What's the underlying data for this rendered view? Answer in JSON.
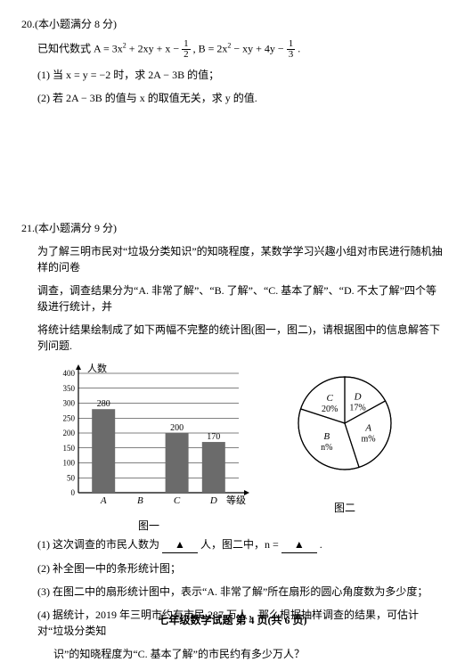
{
  "q20": {
    "header": "20.(本小题满分 8 分)",
    "given_prefix": "已知代数式 ",
    "A_expr_pre": "A = 3x",
    "A_expr_mid": " + 2xy + x − ",
    "A_frac_n": "1",
    "A_frac_d": "2",
    "sep": " , ",
    "B_expr_pre": "B = 2x",
    "B_expr_mid": " − xy + 4y − ",
    "B_frac_n": "1",
    "B_frac_d": "3",
    "period": " .",
    "p1": "(1) 当 x = y = −2 时，求 2A − 3B 的值；",
    "p2": "(2) 若 2A − 3B 的值与 x 的取值无关，求 y 的值."
  },
  "q21": {
    "header": "21.(本小题满分 9 分)",
    "intro1": "为了解三明市民对“垃圾分类知识”的知晓程度，某数学学习兴趣小组对市民进行随机抽样的问卷",
    "intro2": "调查，调查结果分为“A. 非常了解”、“B. 了解”、“C. 基本了解”、“D. 不太了解”四个等级进行统计，并",
    "intro3": "将统计结果绘制成了如下两幅不完整的统计图(图一，图二)，请根据图中的信息解答下列问题.",
    "p1_a": "(1) 这次调查的市民人数为",
    "p1_b": "人，图二中，n =",
    "p1_c": ".",
    "p2": "(2) 补全图一中的条形统计图；",
    "p3": "(3) 在图二中的扇形统计图中，表示“A. 非常了解”所在扇形的圆心角度数为多少度；",
    "p4a": "(4) 据统计，2019 年三明市约有市民 287 万人，那么根据抽样调查的结果，可估计对“垃圾分类知",
    "p4b": "识”的知晓程度为“C. 基本了解”的市民约有多少万人？"
  },
  "barChart": {
    "yLabel": "人数",
    "xLabel": "等级",
    "yTicks": [
      0,
      50,
      100,
      150,
      200,
      250,
      300,
      350,
      400
    ],
    "ymax": 400,
    "categories": [
      "A",
      "B",
      "C",
      "D"
    ],
    "values": [
      280,
      null,
      200,
      170
    ],
    "valueLabels": [
      "280",
      "",
      "200",
      "170"
    ],
    "barColor": "#6b6b6b",
    "axisColor": "#000000",
    "gridColor": "#000000",
    "caption": "图一"
  },
  "pieChart": {
    "slices": [
      {
        "label": "A",
        "sub": "m%",
        "pct": 28
      },
      {
        "label": "B",
        "sub": "n%",
        "pct": 35
      },
      {
        "label": "C",
        "sub": "20%",
        "pct": 20
      },
      {
        "label": "D",
        "sub": "17%",
        "pct": 17
      }
    ],
    "strokeColor": "#000000",
    "caption": "图二"
  },
  "footer": "七年级数学试题 第 4 页(共 6 页)"
}
